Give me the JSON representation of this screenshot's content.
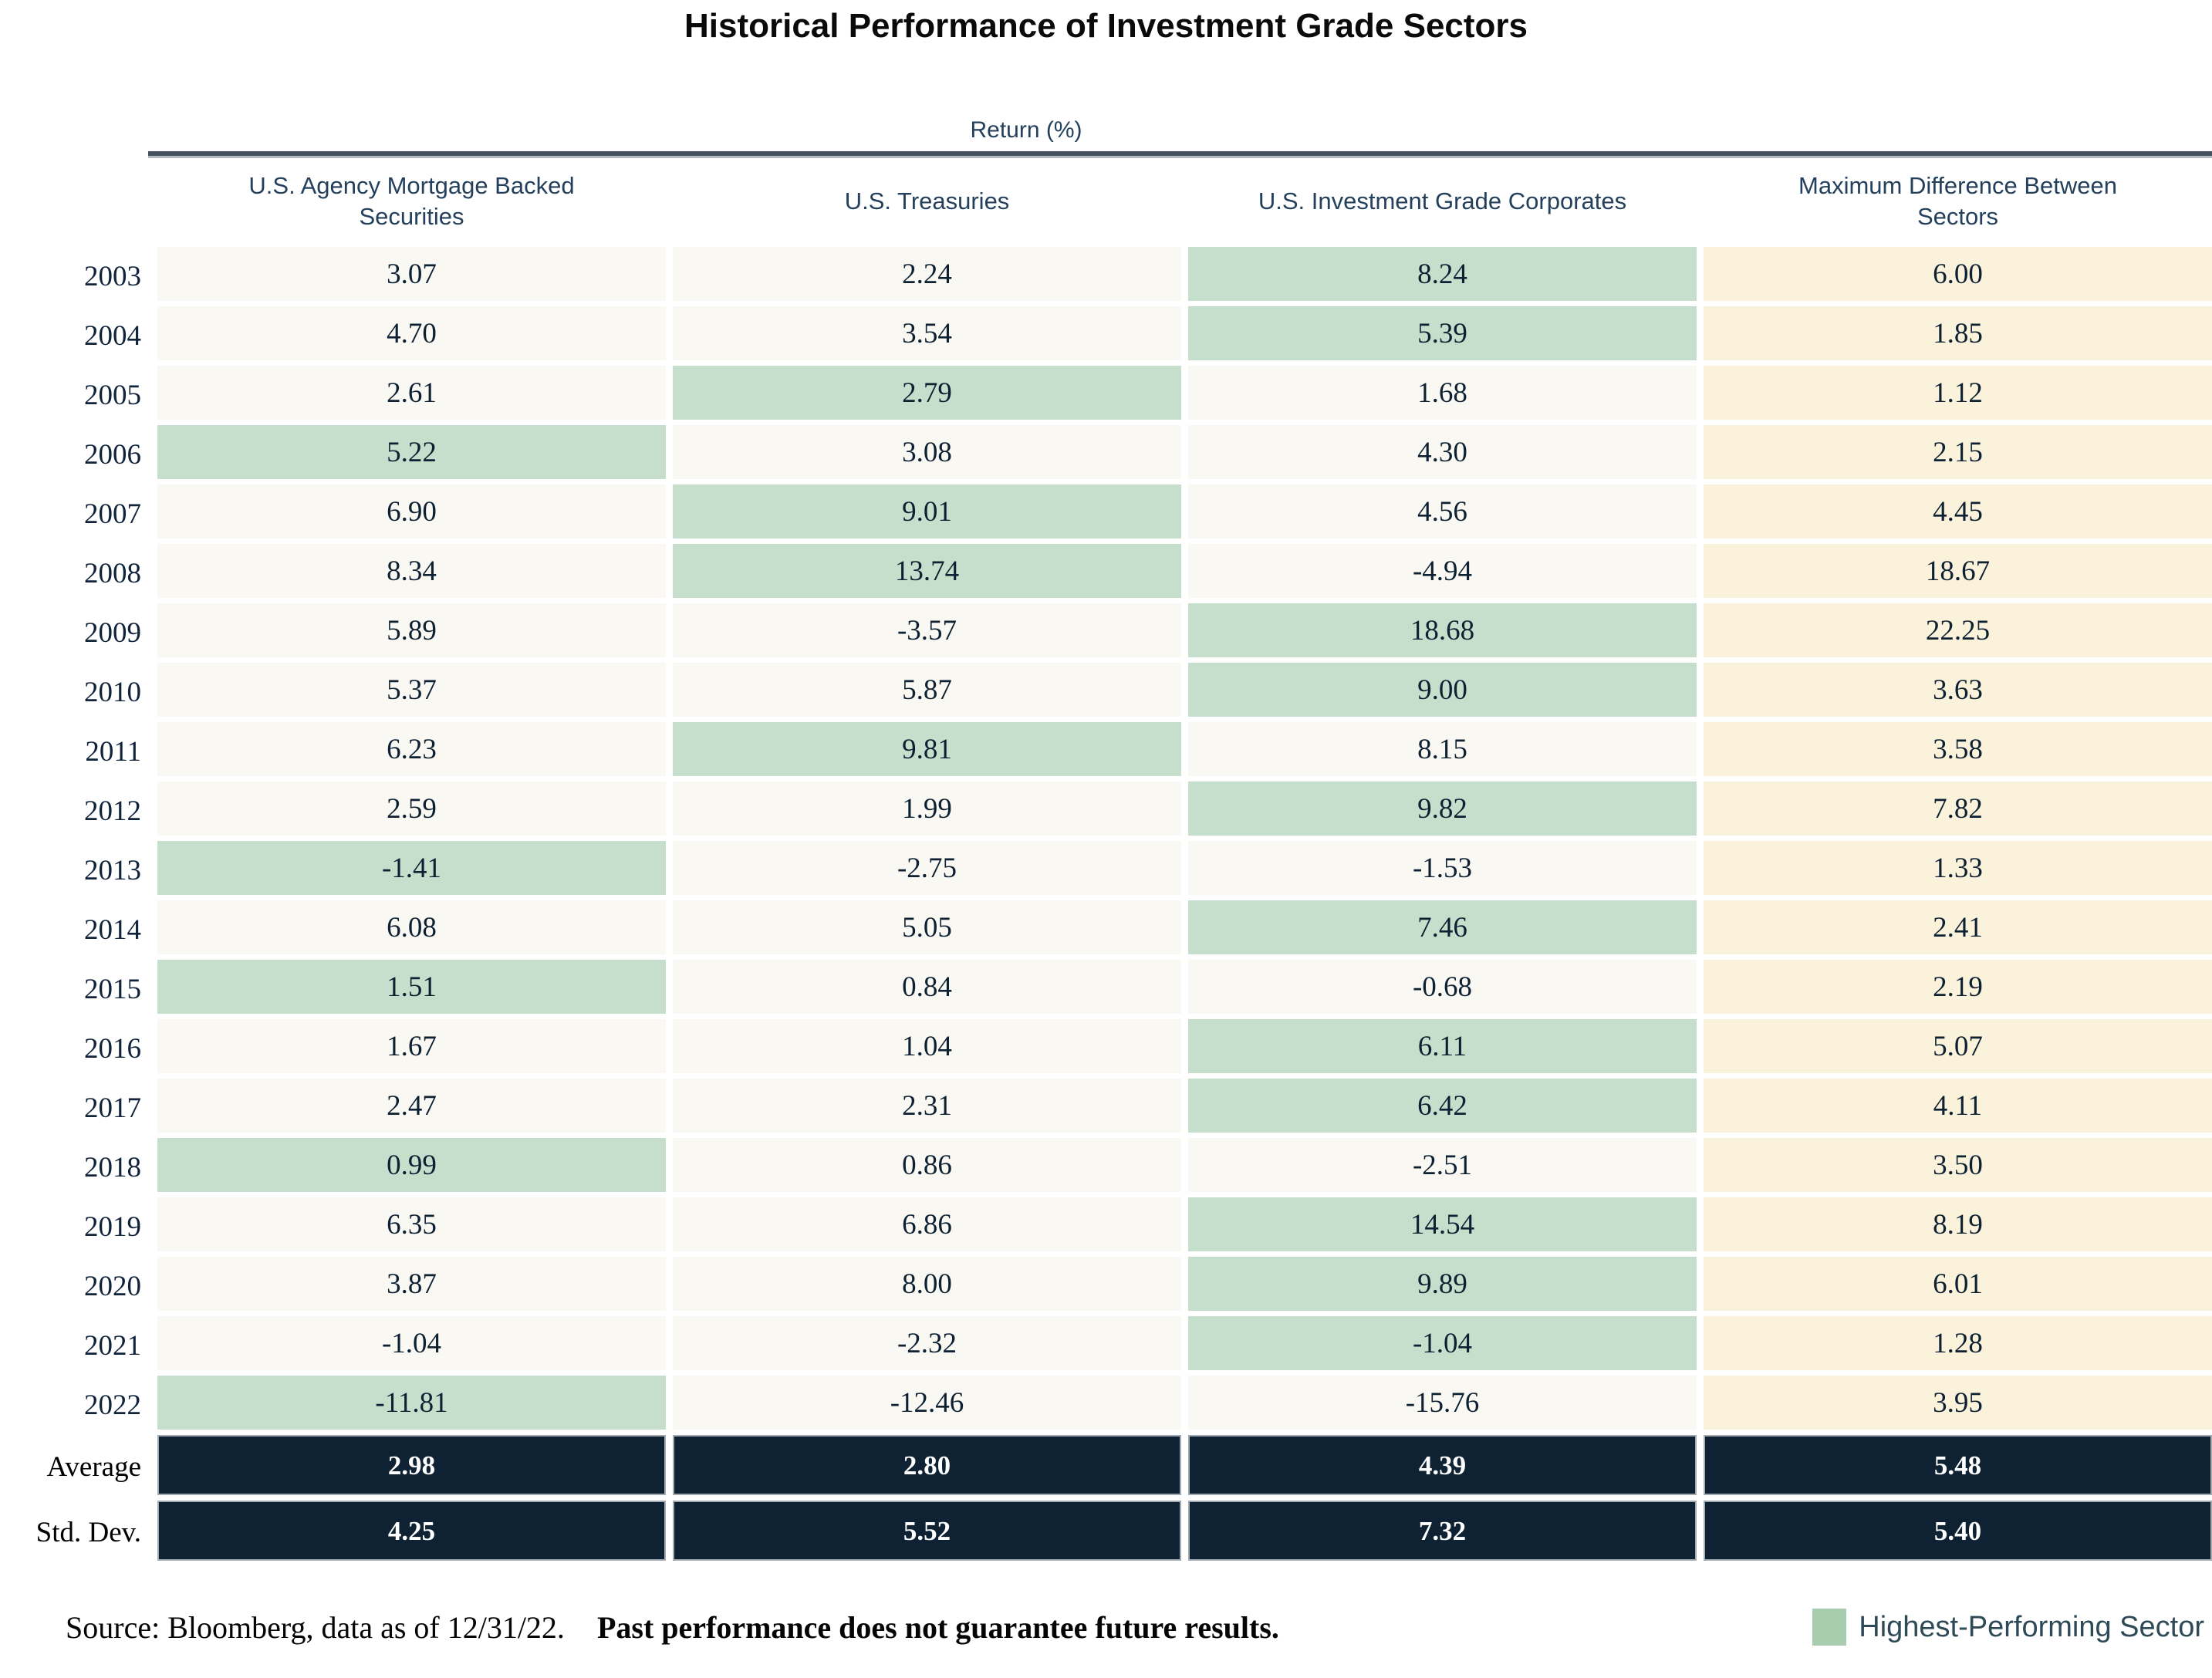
{
  "chart_data": {
    "type": "table",
    "title": "Historical Performance of Investment Grade Sectors",
    "group_header": "Return (%)",
    "columns": [
      "U.S. Agency Mortgage Backed Securities",
      "U.S. Treasuries",
      "U.S. Investment Grade Corporates",
      "Maximum Difference Between Sectors"
    ],
    "highlight_meaning": "Green cell marks the highest-performing sector for that year",
    "rows": [
      {
        "label": "2003",
        "values": [
          "3.07",
          "2.24",
          "8.24",
          "6.00"
        ],
        "highlight_col": 2
      },
      {
        "label": "2004",
        "values": [
          "4.70",
          "3.54",
          "5.39",
          "1.85"
        ],
        "highlight_col": 2
      },
      {
        "label": "2005",
        "values": [
          "2.61",
          "2.79",
          "1.68",
          "1.12"
        ],
        "highlight_col": 1
      },
      {
        "label": "2006",
        "values": [
          "5.22",
          "3.08",
          "4.30",
          "2.15"
        ],
        "highlight_col": 0
      },
      {
        "label": "2007",
        "values": [
          "6.90",
          "9.01",
          "4.56",
          "4.45"
        ],
        "highlight_col": 1
      },
      {
        "label": "2008",
        "values": [
          "8.34",
          "13.74",
          "-4.94",
          "18.67"
        ],
        "highlight_col": 1
      },
      {
        "label": "2009",
        "values": [
          "5.89",
          "-3.57",
          "18.68",
          "22.25"
        ],
        "highlight_col": 2
      },
      {
        "label": "2010",
        "values": [
          "5.37",
          "5.87",
          "9.00",
          "3.63"
        ],
        "highlight_col": 2
      },
      {
        "label": "2011",
        "values": [
          "6.23",
          "9.81",
          "8.15",
          "3.58"
        ],
        "highlight_col": 1
      },
      {
        "label": "2012",
        "values": [
          "2.59",
          "1.99",
          "9.82",
          "7.82"
        ],
        "highlight_col": 2
      },
      {
        "label": "2013",
        "values": [
          "-1.41",
          "-2.75",
          "-1.53",
          "1.33"
        ],
        "highlight_col": 0
      },
      {
        "label": "2014",
        "values": [
          "6.08",
          "5.05",
          "7.46",
          "2.41"
        ],
        "highlight_col": 2
      },
      {
        "label": "2015",
        "values": [
          "1.51",
          "0.84",
          "-0.68",
          "2.19"
        ],
        "highlight_col": 0
      },
      {
        "label": "2016",
        "values": [
          "1.67",
          "1.04",
          "6.11",
          "5.07"
        ],
        "highlight_col": 2
      },
      {
        "label": "2017",
        "values": [
          "2.47",
          "2.31",
          "6.42",
          "4.11"
        ],
        "highlight_col": 2
      },
      {
        "label": "2018",
        "values": [
          "0.99",
          "0.86",
          "-2.51",
          "3.50"
        ],
        "highlight_col": 0
      },
      {
        "label": "2019",
        "values": [
          "6.35",
          "6.86",
          "14.54",
          "8.19"
        ],
        "highlight_col": 2
      },
      {
        "label": "2020",
        "values": [
          "3.87",
          "8.00",
          "9.89",
          "6.01"
        ],
        "highlight_col": 2
      },
      {
        "label": "2021",
        "values": [
          "-1.04",
          "-2.32",
          "-1.04",
          "1.28"
        ],
        "highlight_col": 2
      },
      {
        "label": "2022",
        "values": [
          "-11.81",
          "-12.46",
          "-15.76",
          "3.95"
        ],
        "highlight_col": 0
      }
    ],
    "summary_rows": [
      {
        "label": "Average",
        "values": [
          "2.98",
          "2.80",
          "4.39",
          "5.48"
        ]
      },
      {
        "label": "Std. Dev.",
        "values": [
          "4.25",
          "5.52",
          "7.32",
          "5.40"
        ]
      }
    ],
    "legend": {
      "label": "Highest-Performing Sector",
      "swatch_color": "#a8ccae"
    },
    "layout": {
      "grid": "off",
      "legend_position": "bottom-right"
    }
  },
  "footer": {
    "source_text": "Source: Bloomberg, data as of 12/31/22.",
    "disclaimer_text": "Past performance does not guarantee future results."
  },
  "colors": {
    "highlight_green": "#c6dfcc",
    "max_diff_beige": "#faf2da",
    "plain_cell": "#f9f8f2",
    "summary_navy": "#0e2234",
    "header_text_navy": "#24405c",
    "rule_slate": "#43525e",
    "legend_swatch_green": "#a8ccae"
  }
}
